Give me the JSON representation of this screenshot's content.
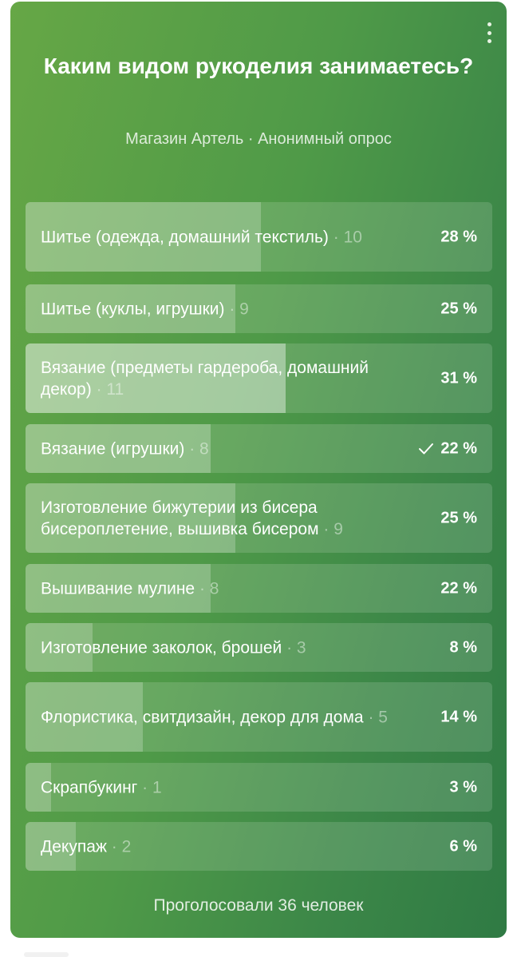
{
  "poll": {
    "title": "Каким видом рукоделия занимаетесь?",
    "subtitle": "Магазин Артель · Анонимный опрос",
    "footer": "Проголосовали 36 человек",
    "options": [
      {
        "label": "Шитье (одежда, домашний текстиль)",
        "count": "· 10",
        "percent": "28 %",
        "fraction": 0.28,
        "voted": false
      },
      {
        "label": "Шитье (куклы, игрушки)",
        "count": "· 9",
        "percent": "25 %",
        "fraction": 0.25,
        "voted": false
      },
      {
        "label": "Вязание (предметы гардероба, домашний декор)",
        "count": "· 11",
        "percent": "31 %",
        "fraction": 0.31,
        "voted": false
      },
      {
        "label": "Вязание (игрушки)",
        "count": "· 8",
        "percent": "22 %",
        "fraction": 0.22,
        "voted": true
      },
      {
        "label": "Изготовление бижутерии из бисера бисероплетение, вышивка бисером",
        "count": "· 9",
        "percent": "25 %",
        "fraction": 0.25,
        "voted": false
      },
      {
        "label": "Вышивание мулине",
        "count": "· 8",
        "percent": "22 %",
        "fraction": 0.22,
        "voted": false
      },
      {
        "label": "Изготовление заколок, брошей",
        "count": "· 3",
        "percent": "8 %",
        "fraction": 0.08,
        "voted": false
      },
      {
        "label": "Флористика, свитдизайн, декор для дома",
        "count": "· 5",
        "percent": "14 %",
        "fraction": 0.14,
        "voted": false
      },
      {
        "label": "Скрапбукинг",
        "count": "· 1",
        "percent": "3 %",
        "fraction": 0.03,
        "voted": false
      },
      {
        "label": "Декупаж",
        "count": "· 2",
        "percent": "6 %",
        "fraction": 0.06,
        "voted": false
      }
    ]
  }
}
